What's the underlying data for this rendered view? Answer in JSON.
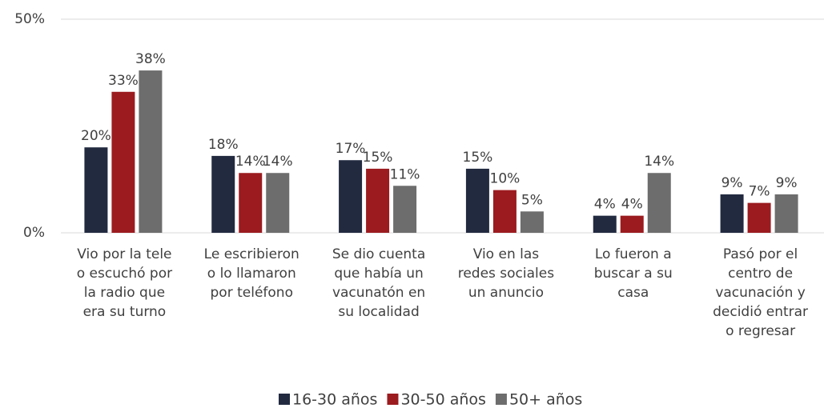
{
  "chart_data": {
    "type": "bar",
    "categories": [
      [
        "Vio por la tele",
        "o escuchó por",
        "la radio que",
        "era su turno"
      ],
      [
        "Le escribieron",
        "o lo llamaron",
        "por teléfono"
      ],
      [
        "Se dio cuenta",
        "que había un",
        "vacunatón en",
        "su localidad"
      ],
      [
        "Vio en las",
        "redes sociales",
        "un anuncio"
      ],
      [
        "Lo fueron a",
        "buscar a su",
        "casa"
      ],
      [
        "Pasó por el",
        "centro de",
        "vacunación y",
        "decidió entrar",
        "o regresar"
      ]
    ],
    "series": [
      {
        "name": "16-30 años",
        "color": "#222a40",
        "values": [
          20,
          18,
          17,
          15,
          4,
          9
        ],
        "value_labels": [
          "20%",
          "18%",
          "17%",
          "15%",
          "4%",
          "9%"
        ]
      },
      {
        "name": "30-50 años",
        "color": "#9b1b1f",
        "values": [
          33,
          14,
          15,
          10,
          4,
          7
        ],
        "value_labels": [
          "33%",
          "14%",
          "15%",
          "10%",
          "4%",
          "7%"
        ]
      },
      {
        "name": "50+ años",
        "color": "#6d6d6d",
        "values": [
          38,
          14,
          11,
          5,
          14,
          9
        ],
        "value_labels": [
          "38%",
          "14%",
          "11%",
          "5%",
          "14%",
          "9%"
        ]
      }
    ],
    "ylim": [
      0,
      50
    ],
    "yticks": [
      {
        "value": 0,
        "label": "0%"
      },
      {
        "value": 50,
        "label": "50%"
      }
    ],
    "grid": true
  }
}
